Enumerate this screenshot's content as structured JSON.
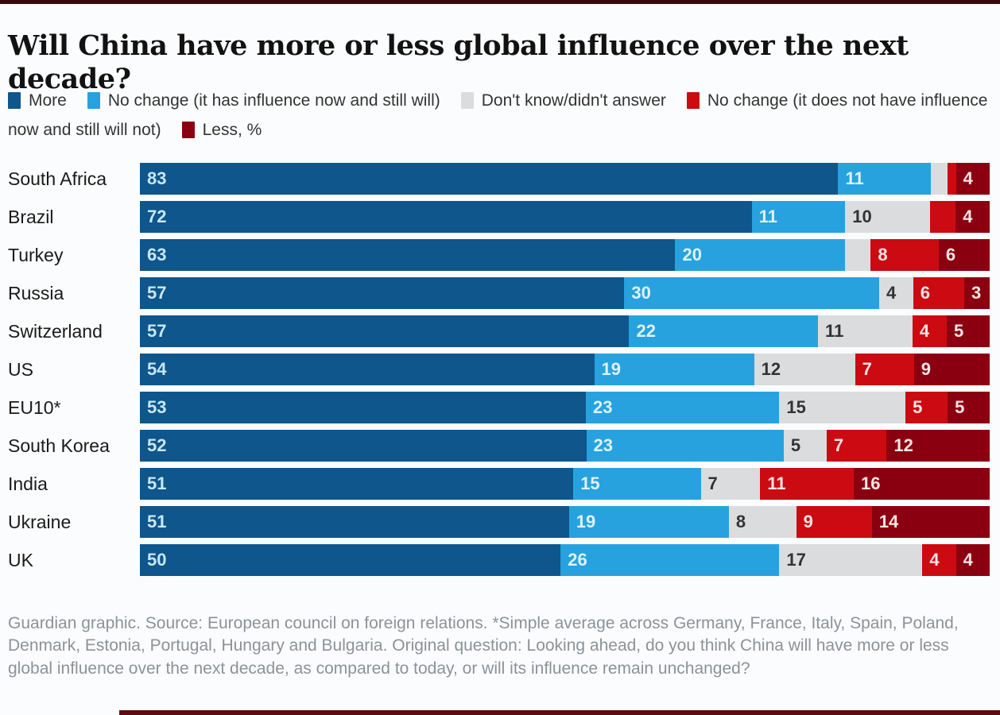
{
  "title": "Will China have more or less global influence over the next decade?",
  "legend": {
    "items": [
      {
        "label": "More",
        "color": "#0e568b"
      },
      {
        "label": "No change (it has influence now and still will)",
        "color": "#27a2de"
      },
      {
        "label": "Don't know/didn't answer",
        "color": "#dbdcde"
      },
      {
        "label": "No change (it does not have influence now and still will not)",
        "color": "#cc0a11"
      },
      {
        "label": "Less, %",
        "color": "#8b0011"
      }
    ]
  },
  "chart_data": {
    "type": "bar",
    "orientation": "horizontal",
    "stacked": true,
    "unit": "%",
    "x_range": [
      0,
      100
    ],
    "grid": false,
    "legend_position": "top",
    "categories": [
      "South Africa",
      "Brazil",
      "Turkey",
      "Russia",
      "Switzerland",
      "US",
      "EU10*",
      "South Korea",
      "India",
      "Ukraine",
      "UK"
    ],
    "series": [
      {
        "key": "more",
        "name": "More",
        "color": "#0e568b",
        "label_color": "#c9e6f6",
        "values": [
          83,
          72,
          63,
          57,
          57,
          54,
          53,
          52,
          51,
          51,
          50
        ],
        "display_labels": [
          "83",
          "72",
          "63",
          "57",
          "57",
          "54",
          "53",
          "52",
          "51",
          "51",
          "50"
        ]
      },
      {
        "key": "no-change-has-influence",
        "name": "No change (it has influence now and still will)",
        "color": "#27a2de",
        "label_color": "#ddf2fc",
        "values": [
          11,
          11,
          20,
          30,
          22,
          19,
          23,
          23,
          15,
          19,
          26
        ],
        "display_labels": [
          "11",
          "11",
          "20",
          "30",
          "22",
          "19",
          "23",
          "23",
          "15",
          "19",
          "26"
        ]
      },
      {
        "key": "dont-know",
        "name": "Don't know/didn't answer",
        "color": "#dbdcde",
        "label_color": "#333333",
        "values": [
          2,
          10,
          3,
          4,
          11,
          12,
          15,
          5,
          7,
          8,
          17
        ],
        "display_labels": [
          "",
          "10",
          "",
          "4",
          "11",
          "12",
          "15",
          "5",
          "7",
          "8",
          "17"
        ]
      },
      {
        "key": "no-change-no-influence",
        "name": "No change (it does not have influence now and still will not)",
        "color": "#cc0a11",
        "label_color": "#f9e4e5",
        "values": [
          1,
          3,
          8,
          6,
          4,
          7,
          5,
          7,
          11,
          9,
          4
        ],
        "display_labels": [
          "",
          "",
          "8",
          "6",
          "4",
          "7",
          "5",
          "7",
          "11",
          "9",
          "4"
        ]
      },
      {
        "key": "less",
        "name": "Less",
        "color": "#8b0011",
        "label_color": "#f9e4e5",
        "values": [
          4,
          4,
          6,
          3,
          5,
          9,
          5,
          12,
          16,
          14,
          4
        ],
        "display_labels": [
          "4",
          "4",
          "6",
          "3",
          "5",
          "9",
          "5",
          "12",
          "16",
          "14",
          "4"
        ]
      }
    ]
  },
  "footer": {
    "text": "Guardian graphic. Source: European council on foreign relations. *Simple average across Germany, France, Italy, Spain, Poland, Denmark, Estonia, Portugal, Hungary and Bulgaria. Original question: Looking ahead, do you think China will have more or less global influence over the next decade, as compared to today, or will its influence remain unchanged?"
  }
}
